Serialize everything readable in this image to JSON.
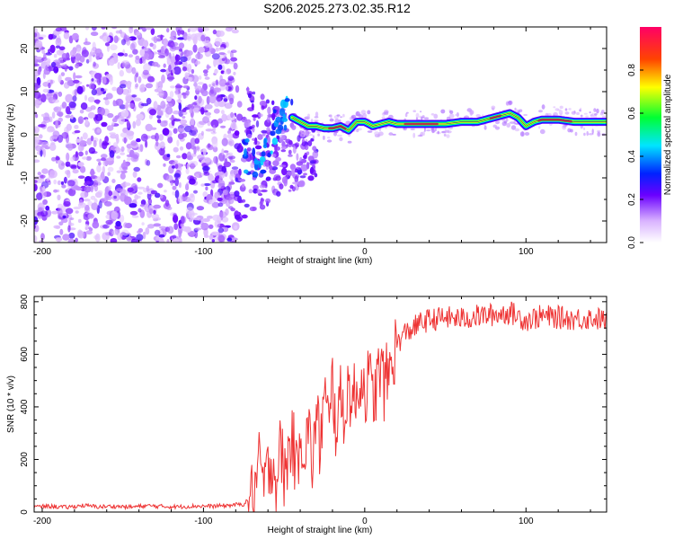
{
  "chart_data": [
    {
      "type": "heatmap",
      "title": "S206.2025.273.02.35.R12",
      "xlabel": "Height of straight line (km)",
      "ylabel": "Frequency (Hz)",
      "xlim": [
        -205,
        150
      ],
      "ylim": [
        -25,
        25
      ],
      "xticks": [
        "-200",
        "-100",
        "0",
        "100"
      ],
      "xtick_values": [
        -200,
        -100,
        0,
        100
      ],
      "yticks": [
        "-20",
        "-10",
        "0",
        "10",
        "20"
      ],
      "ytick_values": [
        -20,
        -10,
        0,
        10,
        20
      ],
      "colorbar": {
        "label": "Normalized spectral amplitude",
        "range": [
          0,
          1
        ],
        "ticks": [
          "0.0",
          "0.2",
          "0.4",
          "0.6",
          "0.8"
        ],
        "tick_values": [
          0,
          0.2,
          0.4,
          0.6,
          0.8
        ]
      },
      "noise_region": {
        "x_start": -205,
        "x_end": -80,
        "freq_min": -25,
        "freq_max": 25,
        "amplitude": 0.15
      },
      "ridge": [
        [
          -75,
          -4
        ],
        [
          -70,
          -6
        ],
        [
          -65,
          -9
        ],
        [
          -60,
          -3
        ],
        [
          -55,
          3
        ],
        [
          -50,
          5
        ],
        [
          -45,
          4
        ],
        [
          -40,
          3
        ],
        [
          -35,
          2
        ],
        [
          -30,
          2
        ],
        [
          -25,
          1.5
        ],
        [
          -20,
          1.5
        ],
        [
          -15,
          2
        ],
        [
          -10,
          1
        ],
        [
          -5,
          3
        ],
        [
          0,
          3
        ],
        [
          5,
          2
        ],
        [
          10,
          2.5
        ],
        [
          15,
          3
        ],
        [
          20,
          2.5
        ],
        [
          30,
          2.5
        ],
        [
          40,
          2.5
        ],
        [
          50,
          2.5
        ],
        [
          60,
          3
        ],
        [
          70,
          3
        ],
        [
          80,
          4
        ],
        [
          90,
          5
        ],
        [
          95,
          4
        ],
        [
          100,
          2
        ],
        [
          105,
          3
        ],
        [
          110,
          3.5
        ],
        [
          120,
          3.5
        ],
        [
          130,
          3
        ],
        [
          140,
          3
        ],
        [
          150,
          3
        ]
      ]
    },
    {
      "type": "line",
      "xlabel": "Height of straight line (km)",
      "ylabel": "SNR (10 * v/v)",
      "xlim": [
        -205,
        150
      ],
      "ylim": [
        0,
        820
      ],
      "xticks": [
        "-200",
        "-100",
        "0",
        "100"
      ],
      "xtick_values": [
        -200,
        -100,
        0,
        100
      ],
      "yticks": [
        "0",
        "200",
        "400",
        "600",
        "800"
      ],
      "ytick_values": [
        0,
        200,
        400,
        600,
        800
      ],
      "color": "#ee3333",
      "series": [
        {
          "name": "SNR",
          "x": [
            -205,
            -195,
            -185,
            -175,
            -165,
            -155,
            -145,
            -135,
            -125,
            -115,
            -105,
            -95,
            -85,
            -75,
            -70,
            -68,
            -65,
            -62,
            -60,
            -58,
            -55,
            -52,
            -50,
            -48,
            -45,
            -42,
            -40,
            -38,
            -35,
            -32,
            -30,
            -28,
            -25,
            -22,
            -20,
            -18,
            -15,
            -12,
            -10,
            -8,
            -5,
            -3,
            0,
            3,
            5,
            8,
            10,
            12,
            15,
            18,
            20,
            25,
            30,
            35,
            40,
            50,
            60,
            70,
            80,
            90,
            100,
            110,
            120,
            130,
            140,
            150
          ],
          "y": [
            20,
            22,
            18,
            25,
            20,
            22,
            19,
            24,
            21,
            20,
            23,
            22,
            25,
            30,
            60,
            100,
            180,
            90,
            150,
            220,
            110,
            250,
            140,
            190,
            300,
            120,
            360,
            220,
            310,
            180,
            400,
            250,
            450,
            300,
            500,
            330,
            420,
            380,
            480,
            440,
            420,
            520,
            470,
            500,
            430,
            500,
            550,
            480,
            530,
            600,
            640,
            680,
            700,
            720,
            730,
            740,
            735,
            745,
            750,
            760,
            730,
            745,
            740,
            735,
            738,
            730
          ]
        }
      ]
    }
  ]
}
